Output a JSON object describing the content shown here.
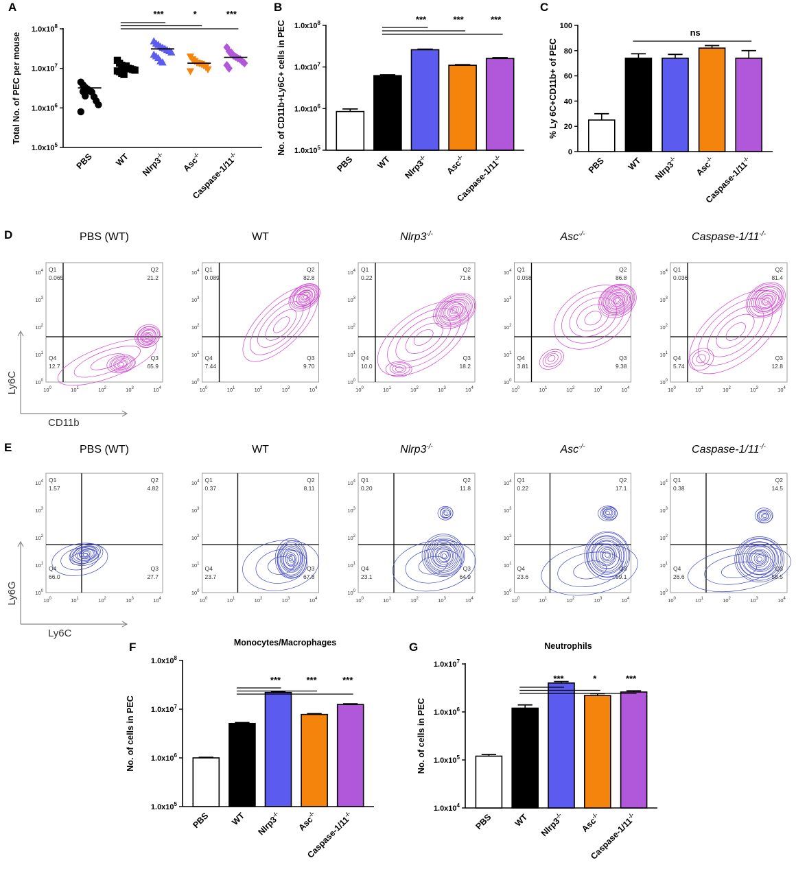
{
  "panels": {
    "A": {
      "label": "A",
      "type": "scatter",
      "ylabel": "Total No. of PEC per mouse",
      "scale": "log",
      "ylim_exp": [
        5,
        8
      ],
      "ticks": [
        "1.0x10",
        "1.0x10",
        "1.0x10",
        "1.0x10"
      ],
      "tick_exps": [
        "5",
        "6",
        "7",
        "8"
      ],
      "categories": [
        "PBS",
        "WT",
        "Nlrp3",
        "Asc",
        "Caspase-1/11"
      ],
      "cat_sups": [
        "",
        "",
        "-/-",
        "-/-",
        "-/-"
      ],
      "colors": [
        "#000000",
        "#000000",
        "#5b5bf0",
        "#f5840c",
        "#b157d9"
      ],
      "markers": [
        "circle",
        "square",
        "triangle",
        "triangle-down",
        "diamond"
      ],
      "means": [
        3200000.0,
        9800000.0,
        31000000.0,
        13500000.0,
        19000000.0
      ],
      "points": [
        [
          4500000.0,
          3800000.0,
          3300000.0,
          3000000.0,
          2700000.0,
          2500000.0,
          1900000.0,
          1500000.0,
          1200000.0,
          800000.0,
          2600000.0,
          2000000.0
        ],
        [
          16000000.0,
          13500000.0,
          12000000.0,
          11000000.0,
          10500000.0,
          10000000.0,
          9700000.0,
          9300000.0,
          9000000.0,
          8600000.0,
          8200000.0,
          7500000.0,
          7000000.0,
          11500000.0
        ],
        [
          48000000.0,
          42000000.0,
          39000000.0,
          35000000.0,
          33000000.0,
          31000000.0,
          29000000.0,
          27000000.0,
          25000000.0,
          22000000.0,
          20000000.0,
          18000000.0,
          15000000.0,
          14000000.0
        ],
        [
          20000000.0,
          17000000.0,
          15500000.0,
          14000000.0,
          13500000.0,
          13000000.0,
          12000000.0,
          11000000.0,
          9500000.0,
          8500000.0
        ],
        [
          34000000.0,
          27000000.0,
          23000000.0,
          21000000.0,
          19500000.0,
          18000000.0,
          17000000.0,
          15000000.0,
          13500000.0,
          12000000.0,
          10000000.0,
          25000000.0
        ]
      ],
      "significance": [
        {
          "from": 1,
          "to": 2,
          "label": "***"
        },
        {
          "from": 1,
          "to": 3,
          "label": "*"
        },
        {
          "from": 1,
          "to": 4,
          "label": "***"
        }
      ]
    },
    "B": {
      "label": "B",
      "type": "bar",
      "ylabel": "No. of CD11b+Ly6C+ cells in PEC",
      "scale": "log",
      "ylim_exp": [
        5,
        8
      ],
      "ticks": [
        "1.0x10",
        "1.0x10",
        "1.0x10",
        "1.0x10"
      ],
      "tick_exps": [
        "5",
        "6",
        "7",
        "8"
      ],
      "categories": [
        "PBS",
        "WT",
        "Nlrp3",
        "Asc",
        "Caspase-1/11"
      ],
      "cat_sups": [
        "",
        "",
        "-/-",
        "-/-",
        "-/-"
      ],
      "colors": [
        "#ffffff",
        "#000000",
        "#5b5bf0",
        "#f5840c",
        "#b157d9"
      ],
      "values": [
        850000.0,
        6200000.0,
        26000000.0,
        11000000.0,
        16000000.0
      ],
      "errors": [
        130000.0,
        300000.0,
        800000.0,
        400000.0,
        800000.0
      ],
      "significance": [
        {
          "from": 1,
          "to": 2,
          "label": "***"
        },
        {
          "from": 1,
          "to": 3,
          "label": "***"
        },
        {
          "from": 1,
          "to": 4,
          "label": "***"
        }
      ]
    },
    "C": {
      "label": "C",
      "type": "bar",
      "ylabel": "% Ly 6C+CD11b+ of PEC",
      "scale": "linear",
      "ylim": [
        0,
        100
      ],
      "ticks": [
        "0",
        "20",
        "40",
        "60",
        "80",
        "100"
      ],
      "categories": [
        "PBS",
        "WT",
        "Nlrp3",
        "Asc",
        "Caspase-1/11"
      ],
      "cat_sups": [
        "",
        "",
        "-/-",
        "-/-",
        "-/-"
      ],
      "colors": [
        "#ffffff",
        "#000000",
        "#5b5bf0",
        "#f5840c",
        "#b157d9"
      ],
      "values": [
        25,
        74,
        74,
        82,
        74
      ],
      "errors": [
        5,
        3.5,
        3,
        2,
        6
      ],
      "significance": [
        {
          "from": 1,
          "to": 4,
          "label": "ns"
        }
      ]
    },
    "D": {
      "label": "D",
      "xaxis": "CD11b",
      "yaxis": "Ly6C",
      "color": "#d13fd1",
      "plots": [
        {
          "title": "PBS (WT)",
          "italic": false,
          "sup": "",
          "q1": "0.065",
          "q2": "21.2",
          "q3": "65.9",
          "q4": "12.7"
        },
        {
          "title": "WT",
          "italic": false,
          "sup": "",
          "q1": "0.089",
          "q2": "82.8",
          "q3": "9.70",
          "q4": "7.44"
        },
        {
          "title": "Nlrp3",
          "italic": true,
          "sup": "-/-",
          "q1": "0.22",
          "q2": "71.6",
          "q3": "18.2",
          "q4": "10.0"
        },
        {
          "title": "Asc",
          "italic": true,
          "sup": "-/-",
          "q1": "0.058",
          "q2": "86.8",
          "q3": "9.38",
          "q4": "3.81"
        },
        {
          "title": "Caspase-1/11",
          "italic": true,
          "sup": "-/-",
          "q1": "0.036",
          "q2": "81.4",
          "q3": "12.8",
          "q4": "5.74"
        }
      ]
    },
    "E": {
      "label": "E",
      "xaxis": "Ly6C",
      "yaxis": "Ly6G",
      "color": "#3f46c8",
      "plots": [
        {
          "title": "PBS (WT)",
          "italic": false,
          "sup": "",
          "q1": "1.57",
          "q2": "4.82",
          "q3": "27.7",
          "q4": "66.0"
        },
        {
          "title": "WT",
          "italic": false,
          "sup": "",
          "q1": "0.37",
          "q2": "8.11",
          "q3": "67.8",
          "q4": "23.7"
        },
        {
          "title": "Nlrp3",
          "italic": true,
          "sup": "-/-",
          "q1": "0.20",
          "q2": "11.8",
          "q3": "64.9",
          "q4": "23.1"
        },
        {
          "title": "Asc",
          "italic": true,
          "sup": "-/-",
          "q1": "0.22",
          "q2": "17.1",
          "q3": "59.1",
          "q4": "23.6"
        },
        {
          "title": "Caspase-1/11",
          "italic": true,
          "sup": "-/-",
          "q1": "0.38",
          "q2": "14.5",
          "q3": "58.5",
          "q4": "26.6"
        }
      ]
    },
    "F": {
      "label": "F",
      "type": "bar",
      "title": "Monocytes/Macrophages",
      "ylabel": "No. of cells in PEC",
      "scale": "log",
      "ylim_exp": [
        5,
        8
      ],
      "ticks": [
        "1.0x10",
        "1.0x10",
        "1.0x10",
        "1.0x10"
      ],
      "tick_exps": [
        "5",
        "6",
        "7",
        "8"
      ],
      "categories": [
        "PBS",
        "WT",
        "Nlrp3",
        "Asc",
        "Caspase-1/11"
      ],
      "cat_sups": [
        "",
        "",
        "-/-",
        "-/-",
        "-/-"
      ],
      "colors": [
        "#ffffff",
        "#000000",
        "#5b5bf0",
        "#f5840c",
        "#b157d9"
      ],
      "values": [
        1000000.0,
        5100000.0,
        22000000.0,
        7800000.0,
        12500000.0
      ],
      "errors": [
        30000.0,
        200000.0,
        600000.0,
        300000.0,
        400000.0
      ],
      "significance": [
        {
          "from": 1,
          "to": 2,
          "label": "***"
        },
        {
          "from": 1,
          "to": 3,
          "label": "***"
        },
        {
          "from": 1,
          "to": 4,
          "label": "***"
        }
      ]
    },
    "G": {
      "label": "G",
      "type": "bar",
      "title": "Neutrophils",
      "ylabel": "No. of cells in PEC",
      "scale": "log",
      "ylim_exp": [
        4,
        7
      ],
      "ticks": [
        "1.0x10",
        "1.0x10",
        "1.0x10",
        "1.0x10"
      ],
      "tick_exps": [
        "4",
        "5",
        "6",
        "7"
      ],
      "categories": [
        "PBS",
        "WT",
        "Nlrp3",
        "Asc",
        "Caspase-1/11"
      ],
      "cat_sups": [
        "",
        "",
        "-/-",
        "-/-",
        "-/-"
      ],
      "colors": [
        "#ffffff",
        "#000000",
        "#5b5bf0",
        "#f5840c",
        "#b157d9"
      ],
      "values": [
        120000.0,
        1200000.0,
        4000000.0,
        2200000.0,
        2600000.0
      ],
      "errors": [
        10000.0,
        200000.0,
        300000.0,
        200000.0,
        150000.0
      ],
      "significance": [
        {
          "from": 1,
          "to": 2,
          "label": "***"
        },
        {
          "from": 1,
          "to": 3,
          "label": "*"
        },
        {
          "from": 1,
          "to": 4,
          "label": "***"
        }
      ]
    }
  },
  "chart_data": [
    {
      "panel": "A",
      "type": "scatter",
      "title": "",
      "ylabel": "Total No. of PEC per mouse",
      "categories": [
        "PBS",
        "WT",
        "Nlrp3-/-",
        "Asc-/-",
        "Caspase-1/11-/-"
      ],
      "series_means": [
        3200000.0,
        9800000.0,
        31000000.0,
        13500000.0,
        19000000.0
      ],
      "ylim": [
        100000.0,
        100000000.0
      ],
      "yscale": "log"
    },
    {
      "panel": "B",
      "type": "bar",
      "ylabel": "No. of CD11b+Ly6C+ cells in PEC",
      "categories": [
        "PBS",
        "WT",
        "Nlrp3-/-",
        "Asc-/-",
        "Caspase-1/11-/-"
      ],
      "values": [
        850000.0,
        6200000.0,
        26000000.0,
        11000000.0,
        16000000.0
      ],
      "ylim": [
        100000.0,
        100000000.0
      ],
      "yscale": "log"
    },
    {
      "panel": "C",
      "type": "bar",
      "ylabel": "% Ly 6C+CD11b+ of PEC",
      "categories": [
        "PBS",
        "WT",
        "Nlrp3-/-",
        "Asc-/-",
        "Caspase-1/11-/-"
      ],
      "values": [
        25,
        74,
        74,
        82,
        74
      ],
      "ylim": [
        0,
        100
      ]
    },
    {
      "panel": "F",
      "type": "bar",
      "title": "Monocytes/Macrophages",
      "ylabel": "No. of cells in PEC",
      "categories": [
        "PBS",
        "WT",
        "Nlrp3-/-",
        "Asc-/-",
        "Caspase-1/11-/-"
      ],
      "values": [
        1000000.0,
        5100000.0,
        22000000.0,
        7800000.0,
        12500000.0
      ],
      "ylim": [
        100000.0,
        100000000.0
      ],
      "yscale": "log"
    },
    {
      "panel": "G",
      "type": "bar",
      "title": "Neutrophils",
      "ylabel": "No. of cells in PEC",
      "categories": [
        "PBS",
        "WT",
        "Nlrp3-/-",
        "Asc-/-",
        "Caspase-1/11-/-"
      ],
      "values": [
        120000.0,
        1200000.0,
        4000000.0,
        2200000.0,
        2600000.0
      ],
      "ylim": [
        10000.0,
        10000000.0
      ],
      "yscale": "log"
    }
  ]
}
